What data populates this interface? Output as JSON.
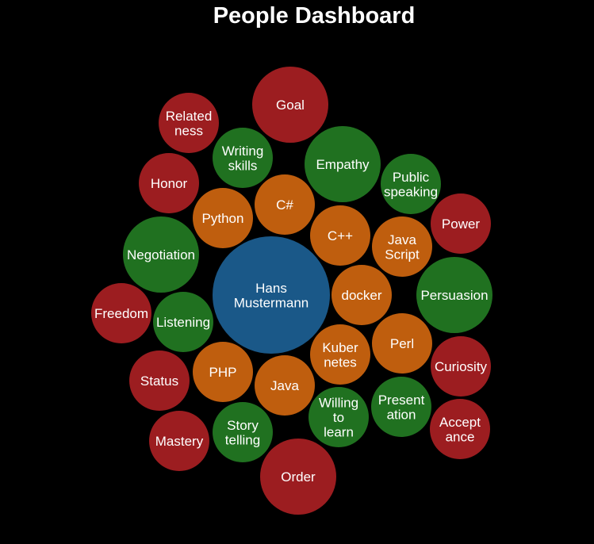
{
  "title": "People Dashboard",
  "colors": {
    "background": "#000000",
    "center": "#1a5888",
    "skill": "#bf5e0e",
    "soft_skill": "#207120",
    "motivator": "#9c1d20",
    "label": "#ffffff"
  },
  "chart_data": {
    "type": "bubble",
    "title": "People Dashboard",
    "nodes": [
      {
        "label": "Hans\nMustermann",
        "group": "center",
        "size": 74
      },
      {
        "label": "C#",
        "group": "skill",
        "size": 38
      },
      {
        "label": "Python",
        "group": "skill",
        "size": 38
      },
      {
        "label": "C++",
        "group": "skill",
        "size": 38
      },
      {
        "label": "Java\nScript",
        "group": "skill",
        "size": 38
      },
      {
        "label": "docker",
        "group": "skill",
        "size": 38
      },
      {
        "label": "Kuber\nnetes",
        "group": "skill",
        "size": 38
      },
      {
        "label": "Perl",
        "group": "skill",
        "size": 38
      },
      {
        "label": "PHP",
        "group": "skill",
        "size": 38
      },
      {
        "label": "Java",
        "group": "skill",
        "size": 38
      },
      {
        "label": "Writing\nskills",
        "group": "soft_skill",
        "size": 38
      },
      {
        "label": "Empathy",
        "group": "soft_skill",
        "size": 48
      },
      {
        "label": "Public\nspeaking",
        "group": "soft_skill",
        "size": 38
      },
      {
        "label": "Negotiation",
        "group": "soft_skill",
        "size": 48
      },
      {
        "label": "Listening",
        "group": "soft_skill",
        "size": 38
      },
      {
        "label": "Persuasion",
        "group": "soft_skill",
        "size": 48
      },
      {
        "label": "Present\nation",
        "group": "soft_skill",
        "size": 38
      },
      {
        "label": "Willing\nto\nlearn",
        "group": "soft_skill",
        "size": 38
      },
      {
        "label": "Story\ntelling",
        "group": "soft_skill",
        "size": 38
      },
      {
        "label": "Goal",
        "group": "motivator",
        "size": 48
      },
      {
        "label": "Related\nness",
        "group": "motivator",
        "size": 38
      },
      {
        "label": "Honor",
        "group": "motivator",
        "size": 38
      },
      {
        "label": "Power",
        "group": "motivator",
        "size": 38
      },
      {
        "label": "Freedom",
        "group": "motivator",
        "size": 38
      },
      {
        "label": "Curiosity",
        "group": "motivator",
        "size": 38
      },
      {
        "label": "Status",
        "group": "motivator",
        "size": 38
      },
      {
        "label": "Accept\nance",
        "group": "motivator",
        "size": 38
      },
      {
        "label": "Mastery",
        "group": "motivator",
        "size": 38
      },
      {
        "label": "Order",
        "group": "motivator",
        "size": 48
      }
    ]
  }
}
